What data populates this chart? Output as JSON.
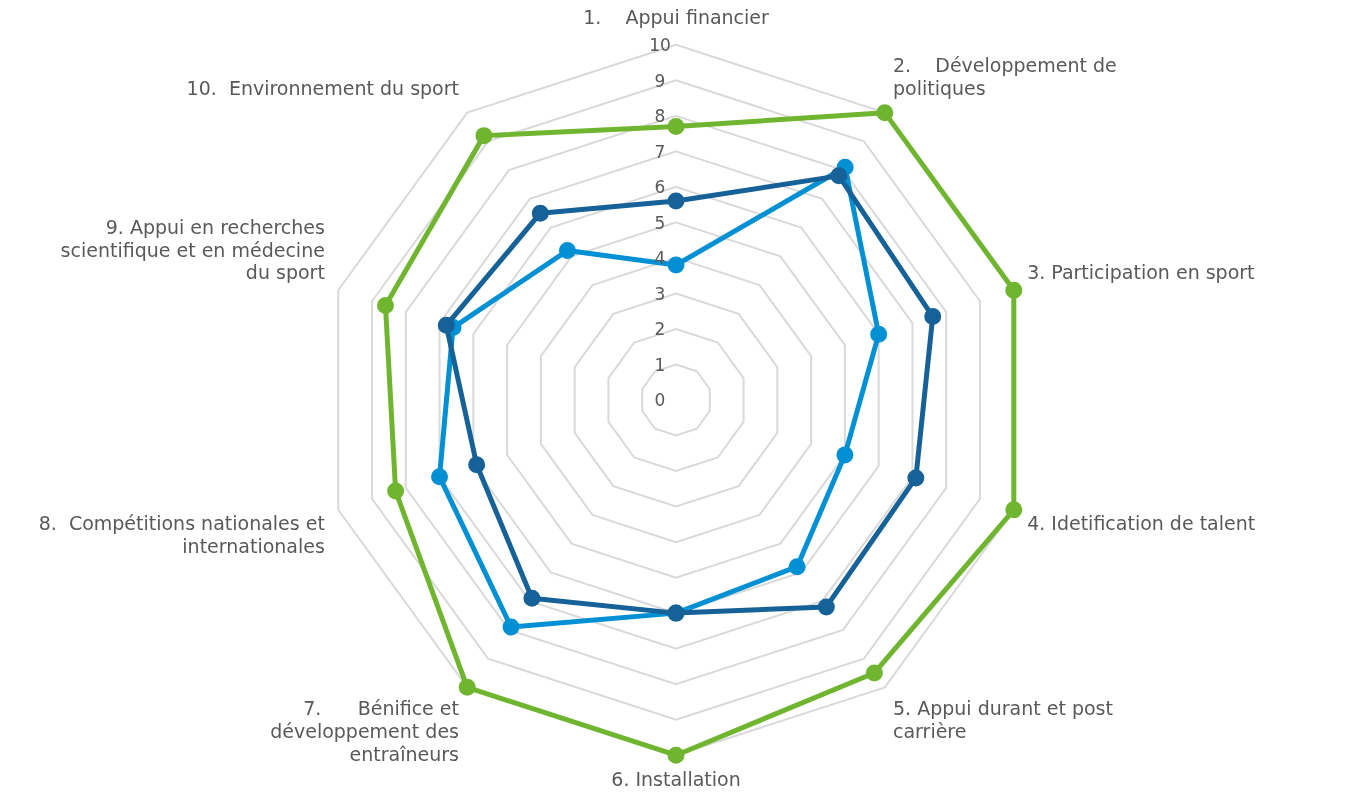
{
  "chart_data": {
    "type": "radar",
    "categories": [
      "1.    Appui financier",
      "2.    Développement de\npolitiques",
      "3. Participation en sport",
      "4. Idetification de talent",
      "5. Appui durant et post\ncarrière",
      "6. Installation",
      "7.      Bénifice et\ndéveloppement des\nentraîneurs",
      "8.  Compétitions nationales et\ninternationales",
      "9. Appui en recherches\nscientifique et en médecine\ndu sport",
      "10.  Environnement du sport"
    ],
    "series": [
      {
        "color": "#70b52f",
        "values": [
          7.7,
          10,
          10,
          10,
          9.5,
          10,
          10,
          8.3,
          8.6,
          9.2
        ]
      },
      {
        "color": "#176199",
        "values": [
          5.6,
          7.8,
          7.6,
          7.1,
          7.2,
          6,
          6.9,
          5.9,
          6.8,
          6.5
        ]
      },
      {
        "color": "#0090d3",
        "values": [
          3.8,
          8.1,
          6,
          5,
          5.8,
          6,
          7.9,
          7,
          6.6,
          5.2
        ]
      }
    ],
    "ylim": [
      0,
      10
    ],
    "yticks": [
      0,
      1,
      2,
      3,
      4,
      5,
      6,
      7,
      8,
      9,
      10
    ],
    "grid": true,
    "legend": false,
    "marker": "circle",
    "line_style": "solid"
  }
}
